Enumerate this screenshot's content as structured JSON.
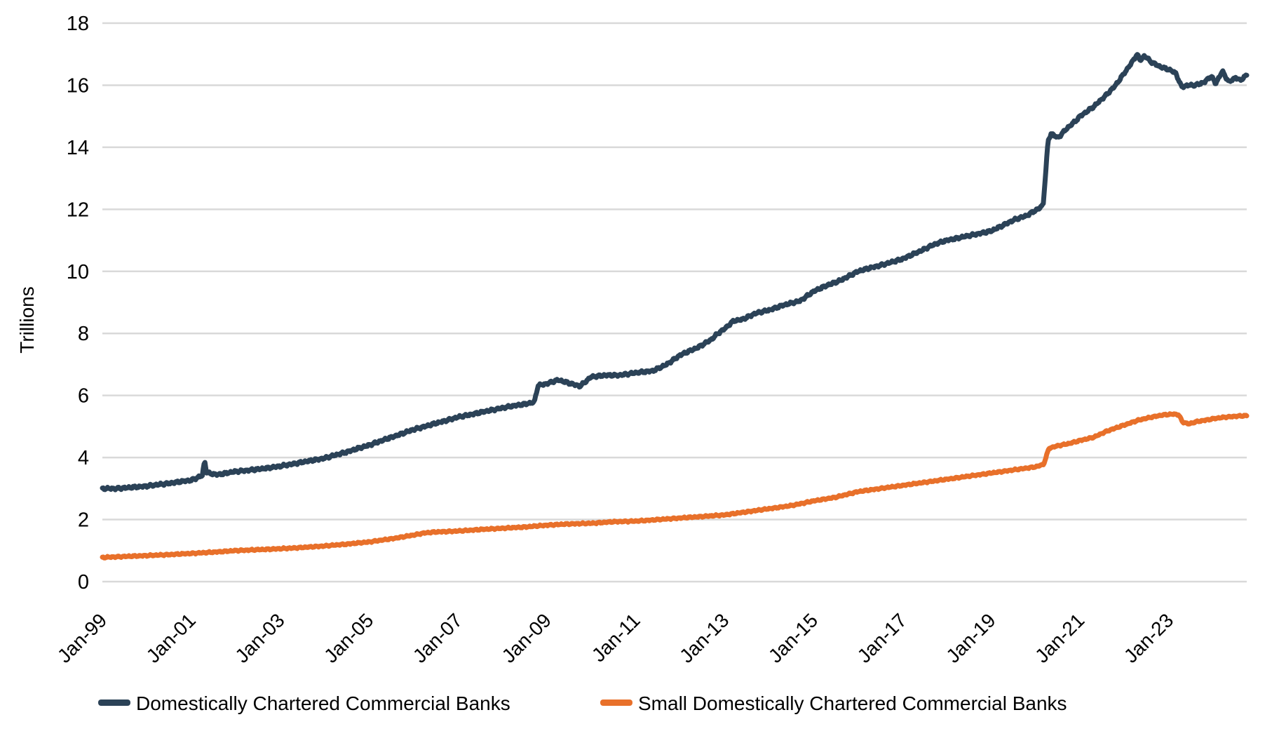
{
  "chart_data": {
    "type": "line",
    "title": "",
    "xlabel": "",
    "ylabel": "Trillions",
    "ylim": [
      0,
      18
    ],
    "y_ticks": [
      0,
      2,
      4,
      6,
      8,
      10,
      12,
      14,
      16,
      18
    ],
    "x_start": 1999.0,
    "x_end": 2024.75,
    "x_tick_years": [
      1999,
      2001,
      2003,
      2005,
      2007,
      2009,
      2011,
      2013,
      2015,
      2017,
      2019,
      2021,
      2023
    ],
    "x_tick_labels": [
      "Jan-99",
      "Jan-01",
      "Jan-03",
      "Jan-05",
      "Jan-07",
      "Jan-09",
      "Jan-11",
      "Jan-13",
      "Jan-15",
      "Jan-17",
      "Jan-19",
      "Jan-21",
      "Jan-23"
    ],
    "grid": true,
    "gridline_color": "#D9D9D9",
    "background": "#FFFFFF",
    "legend_position": "bottom",
    "series": [
      {
        "name": "Domestically Chartered Commercial Banks",
        "color": "#2B4257",
        "points": [
          [
            1999.0,
            3.0
          ],
          [
            1999.3,
            3.0
          ],
          [
            1999.6,
            3.03
          ],
          [
            2000.0,
            3.08
          ],
          [
            2000.5,
            3.17
          ],
          [
            2001.0,
            3.27
          ],
          [
            2001.25,
            3.42
          ],
          [
            2001.3,
            3.9
          ],
          [
            2001.35,
            3.5
          ],
          [
            2001.6,
            3.45
          ],
          [
            2002.0,
            3.55
          ],
          [
            2002.5,
            3.62
          ],
          [
            2003.0,
            3.72
          ],
          [
            2003.5,
            3.85
          ],
          [
            2004.0,
            3.98
          ],
          [
            2004.5,
            4.18
          ],
          [
            2005.0,
            4.4
          ],
          [
            2005.5,
            4.65
          ],
          [
            2006.0,
            4.9
          ],
          [
            2006.5,
            5.1
          ],
          [
            2007.0,
            5.3
          ],
          [
            2007.5,
            5.45
          ],
          [
            2008.0,
            5.6
          ],
          [
            2008.4,
            5.7
          ],
          [
            2008.72,
            5.78
          ],
          [
            2008.8,
            6.32
          ],
          [
            2009.0,
            6.38
          ],
          [
            2009.25,
            6.5
          ],
          [
            2009.5,
            6.4
          ],
          [
            2009.75,
            6.3
          ],
          [
            2010.0,
            6.6
          ],
          [
            2010.3,
            6.65
          ],
          [
            2010.6,
            6.65
          ],
          [
            2011.0,
            6.73
          ],
          [
            2011.4,
            6.8
          ],
          [
            2011.7,
            7.0
          ],
          [
            2012.0,
            7.3
          ],
          [
            2012.4,
            7.55
          ],
          [
            2012.7,
            7.8
          ],
          [
            2012.85,
            8.0
          ],
          [
            2013.0,
            8.15
          ],
          [
            2013.2,
            8.4
          ],
          [
            2013.4,
            8.45
          ],
          [
            2013.7,
            8.65
          ],
          [
            2014.0,
            8.75
          ],
          [
            2014.3,
            8.9
          ],
          [
            2014.7,
            9.05
          ],
          [
            2015.0,
            9.35
          ],
          [
            2015.3,
            9.55
          ],
          [
            2015.6,
            9.7
          ],
          [
            2016.0,
            10.0
          ],
          [
            2016.3,
            10.12
          ],
          [
            2016.6,
            10.23
          ],
          [
            2017.0,
            10.4
          ],
          [
            2017.4,
            10.65
          ],
          [
            2017.7,
            10.86
          ],
          [
            2018.0,
            11.0
          ],
          [
            2018.5,
            11.15
          ],
          [
            2019.0,
            11.3
          ],
          [
            2019.5,
            11.65
          ],
          [
            2019.8,
            11.8
          ],
          [
            2020.1,
            12.05
          ],
          [
            2020.17,
            12.15
          ],
          [
            2020.28,
            14.2
          ],
          [
            2020.35,
            14.45
          ],
          [
            2020.5,
            14.3
          ],
          [
            2020.7,
            14.6
          ],
          [
            2020.9,
            14.85
          ],
          [
            2021.0,
            15.0
          ],
          [
            2021.3,
            15.3
          ],
          [
            2021.6,
            15.7
          ],
          [
            2021.8,
            16.0
          ],
          [
            2022.0,
            16.4
          ],
          [
            2022.15,
            16.7
          ],
          [
            2022.28,
            17.0
          ],
          [
            2022.35,
            16.8
          ],
          [
            2022.45,
            16.95
          ],
          [
            2022.6,
            16.75
          ],
          [
            2022.8,
            16.6
          ],
          [
            2023.0,
            16.5
          ],
          [
            2023.15,
            16.4
          ],
          [
            2023.28,
            15.95
          ],
          [
            2023.45,
            16.0
          ],
          [
            2023.6,
            16.0
          ],
          [
            2023.8,
            16.1
          ],
          [
            2023.95,
            16.3
          ],
          [
            2024.05,
            16.05
          ],
          [
            2024.2,
            16.45
          ],
          [
            2024.35,
            16.1
          ],
          [
            2024.5,
            16.25
          ],
          [
            2024.6,
            16.15
          ],
          [
            2024.75,
            16.33
          ]
        ]
      },
      {
        "name": "Small Domestically Chartered Commercial Banks",
        "color": "#E8702A",
        "points": [
          [
            1999.0,
            0.78
          ],
          [
            1999.5,
            0.81
          ],
          [
            2000.0,
            0.84
          ],
          [
            2000.5,
            0.87
          ],
          [
            2001.0,
            0.91
          ],
          [
            2001.5,
            0.95
          ],
          [
            2002.0,
            1.0
          ],
          [
            2002.5,
            1.03
          ],
          [
            2003.0,
            1.06
          ],
          [
            2003.5,
            1.1
          ],
          [
            2004.0,
            1.15
          ],
          [
            2004.5,
            1.21
          ],
          [
            2005.0,
            1.28
          ],
          [
            2005.5,
            1.38
          ],
          [
            2006.0,
            1.5
          ],
          [
            2006.25,
            1.57
          ],
          [
            2006.5,
            1.6
          ],
          [
            2007.0,
            1.63
          ],
          [
            2007.5,
            1.68
          ],
          [
            2008.0,
            1.72
          ],
          [
            2008.5,
            1.76
          ],
          [
            2009.0,
            1.82
          ],
          [
            2009.5,
            1.86
          ],
          [
            2010.0,
            1.88
          ],
          [
            2010.5,
            1.93
          ],
          [
            2011.0,
            1.95
          ],
          [
            2011.5,
            2.0
          ],
          [
            2012.0,
            2.05
          ],
          [
            2012.5,
            2.1
          ],
          [
            2013.0,
            2.15
          ],
          [
            2013.5,
            2.25
          ],
          [
            2014.0,
            2.35
          ],
          [
            2014.5,
            2.45
          ],
          [
            2015.0,
            2.6
          ],
          [
            2015.5,
            2.72
          ],
          [
            2016.0,
            2.9
          ],
          [
            2016.5,
            3.0
          ],
          [
            2017.0,
            3.1
          ],
          [
            2017.5,
            3.2
          ],
          [
            2018.0,
            3.3
          ],
          [
            2018.5,
            3.4
          ],
          [
            2019.0,
            3.5
          ],
          [
            2019.5,
            3.6
          ],
          [
            2020.0,
            3.7
          ],
          [
            2020.18,
            3.78
          ],
          [
            2020.3,
            4.3
          ],
          [
            2020.5,
            4.38
          ],
          [
            2020.75,
            4.45
          ],
          [
            2021.0,
            4.55
          ],
          [
            2021.3,
            4.65
          ],
          [
            2021.6,
            4.85
          ],
          [
            2022.0,
            5.05
          ],
          [
            2022.3,
            5.2
          ],
          [
            2022.6,
            5.3
          ],
          [
            2022.85,
            5.37
          ],
          [
            2023.1,
            5.4
          ],
          [
            2023.22,
            5.38
          ],
          [
            2023.3,
            5.15
          ],
          [
            2023.45,
            5.08
          ],
          [
            2023.6,
            5.15
          ],
          [
            2023.8,
            5.2
          ],
          [
            2024.0,
            5.25
          ],
          [
            2024.25,
            5.3
          ],
          [
            2024.5,
            5.33
          ],
          [
            2024.75,
            5.35
          ]
        ]
      }
    ]
  }
}
